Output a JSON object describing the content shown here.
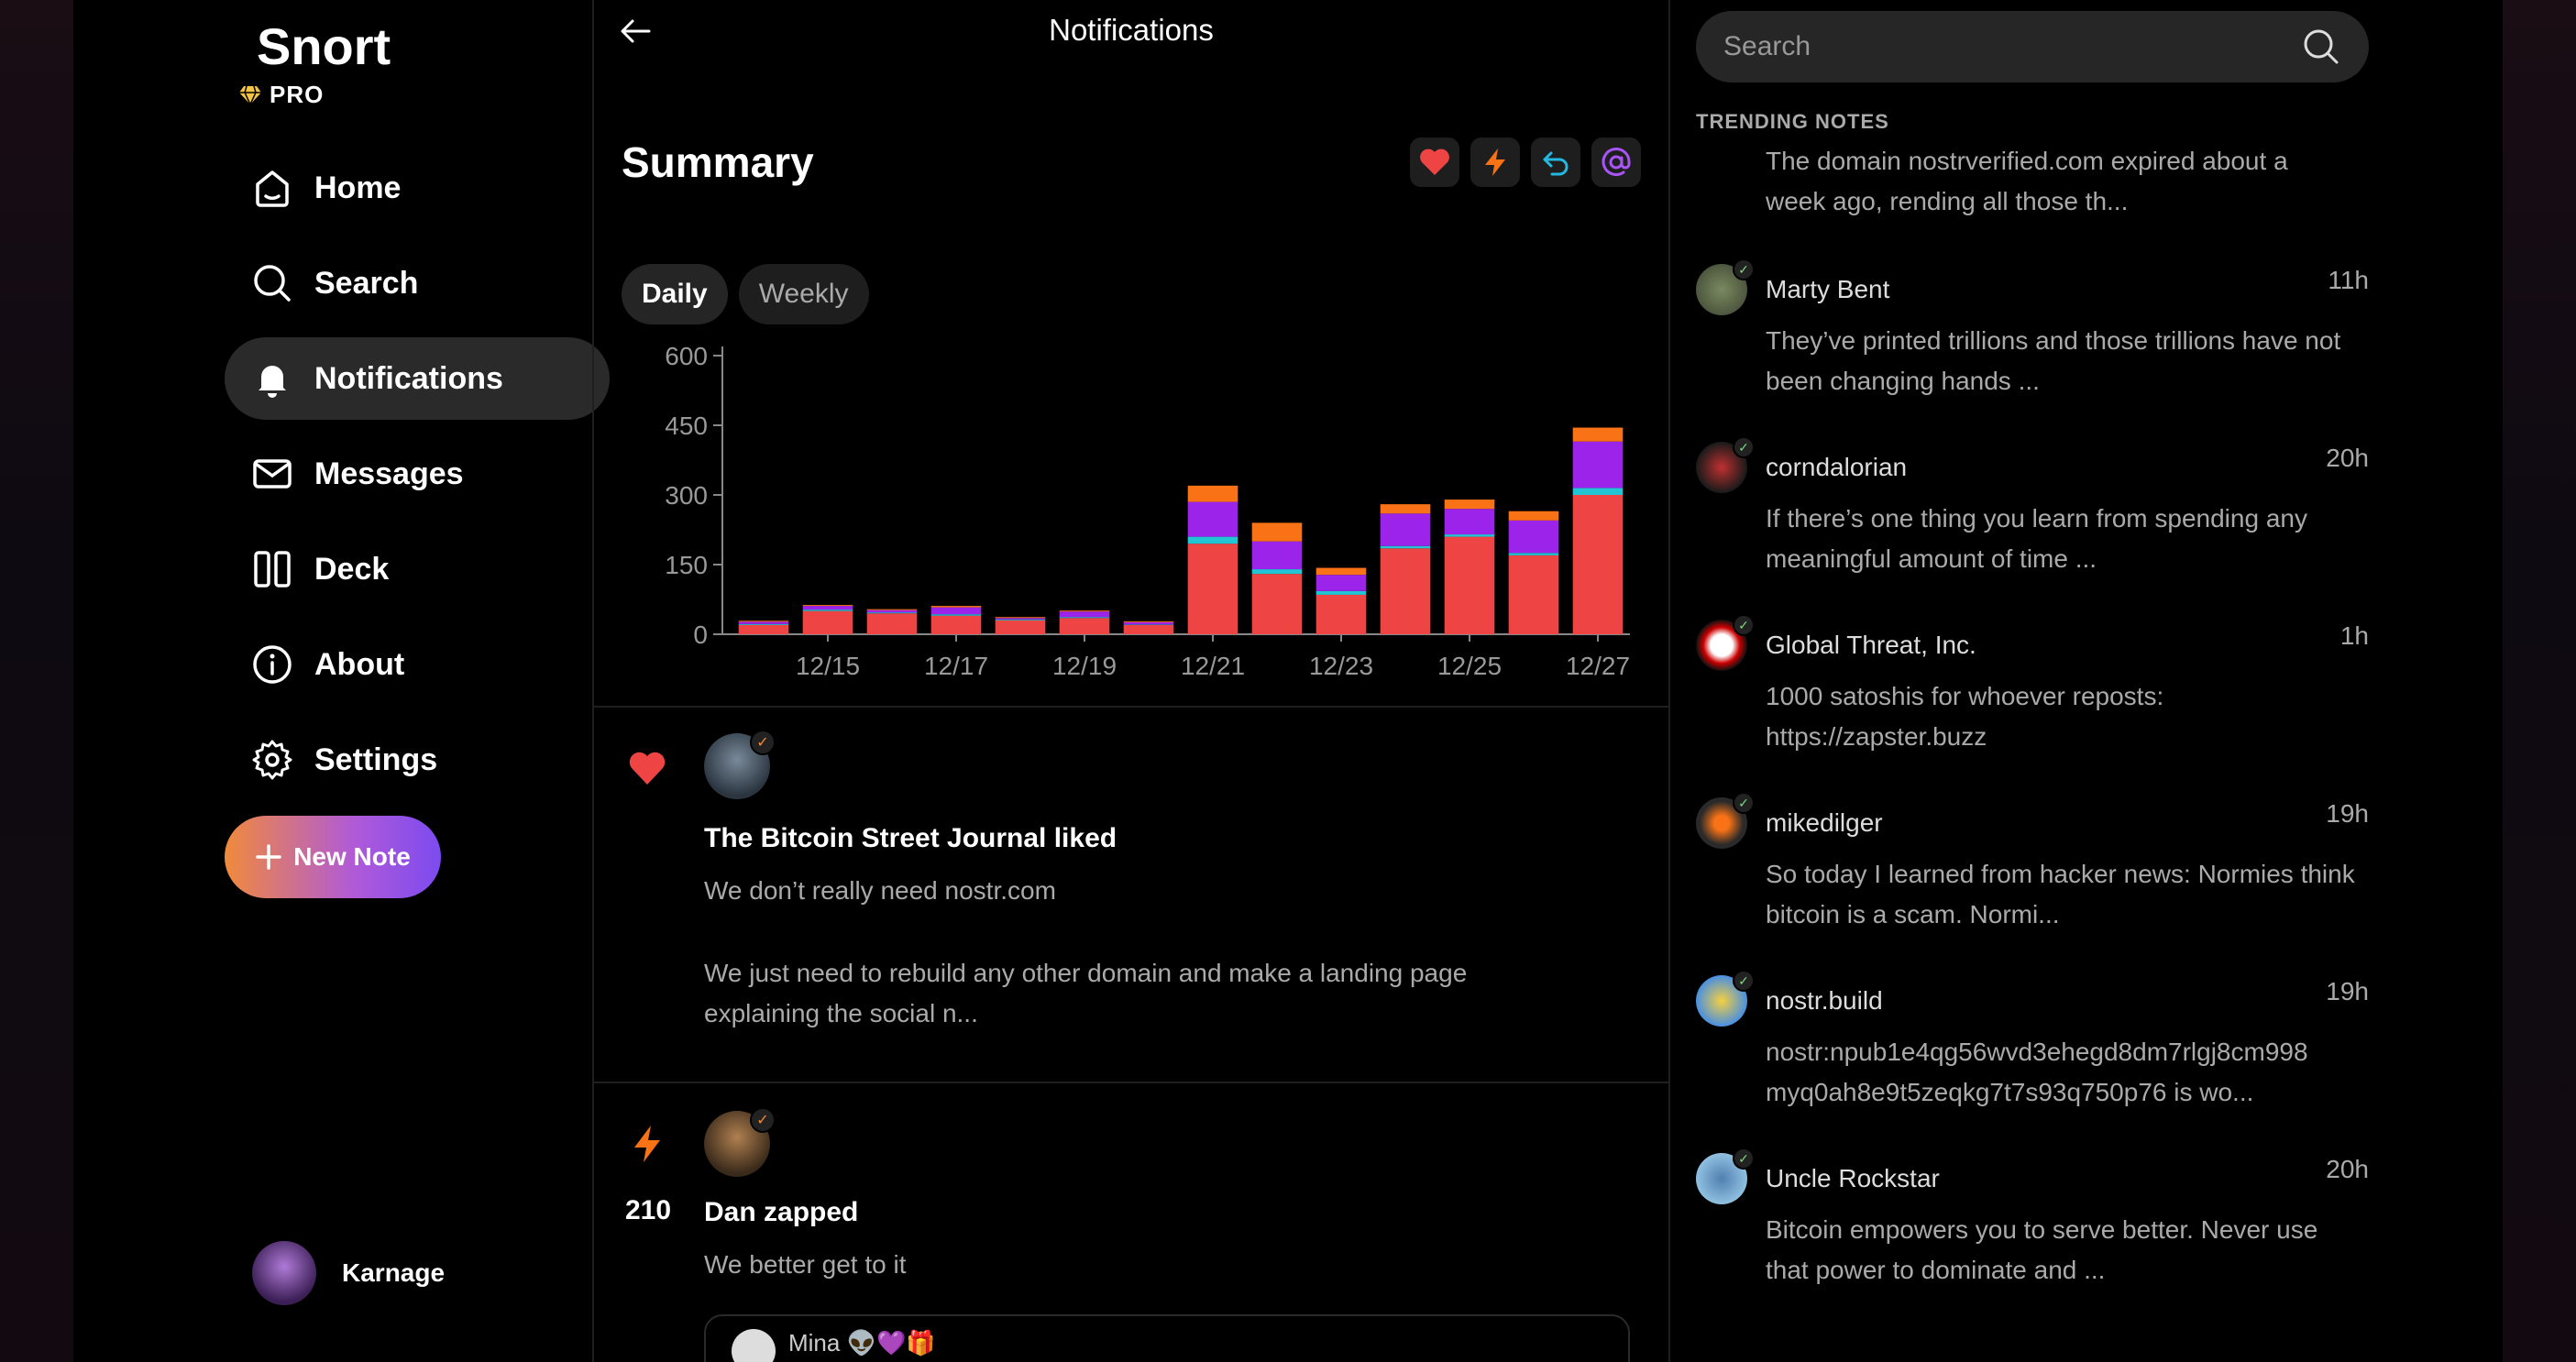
{
  "sidebar": {
    "logo": "Snort",
    "pro_label": "PRO",
    "nav": [
      {
        "label": "Home",
        "icon": "home-icon"
      },
      {
        "label": "Search",
        "icon": "search-icon"
      },
      {
        "label": "Notifications",
        "icon": "bell-icon",
        "active": true
      },
      {
        "label": "Messages",
        "icon": "mail-icon"
      },
      {
        "label": "Deck",
        "icon": "deck-icon"
      },
      {
        "label": "About",
        "icon": "info-icon"
      },
      {
        "label": "Settings",
        "icon": "gear-icon"
      }
    ],
    "new_note_label": "New Note",
    "profile_name": "Karnage"
  },
  "main": {
    "title": "Notifications",
    "summary_title": "Summary",
    "tabs": [
      {
        "label": "Daily",
        "active": true
      },
      {
        "label": "Weekly",
        "active": false
      }
    ],
    "filters": [
      "heart-icon",
      "zap-icon",
      "repost-icon",
      "mention-icon"
    ]
  },
  "chart_data": {
    "type": "bar",
    "stacked": true,
    "categories": [
      "12/14",
      "12/15",
      "12/16",
      "12/17",
      "12/18",
      "12/19",
      "12/20",
      "12/21",
      "12/22",
      "12/23",
      "12/24",
      "12/25",
      "12/26",
      "12/27"
    ],
    "x_tick_labels": [
      "12/15",
      "12/17",
      "12/19",
      "12/21",
      "12/23",
      "12/25",
      "12/27"
    ],
    "y_ticks": [
      0,
      150,
      300,
      450,
      600
    ],
    "ylim": [
      0,
      600
    ],
    "series": [
      {
        "color": "#ef4444",
        "values": [
          20,
          50,
          45,
          40,
          30,
          35,
          20,
          195,
          130,
          85,
          185,
          210,
          170,
          300
        ]
      },
      {
        "color": "#22c5d4",
        "values": [
          2,
          3,
          2,
          3,
          2,
          2,
          1,
          15,
          10,
          8,
          5,
          5,
          5,
          15
        ]
      },
      {
        "color": "#9b23ea",
        "values": [
          5,
          8,
          5,
          15,
          3,
          12,
          5,
          75,
          60,
          35,
          70,
          55,
          70,
          100
        ]
      },
      {
        "color": "#f97316",
        "values": [
          2,
          2,
          2,
          3,
          2,
          2,
          2,
          35,
          40,
          15,
          20,
          20,
          20,
          30
        ]
      }
    ]
  },
  "notifications": [
    {
      "kind": "like",
      "title": "The Bitcoin Street Journal liked",
      "text_1": "We don’t really need nostr.com",
      "text_2": "We just need to rebuild any other domain and make a landing page explaining the social n..."
    },
    {
      "kind": "zap",
      "count": "210",
      "title": "Dan zapped",
      "text_1": "We better get to it",
      "quote_author": "Mina 👽💜🎁"
    }
  ],
  "right": {
    "search_placeholder": "Search",
    "trending_heading": "TRENDING NOTES",
    "first_text": "The domain nostrverified.com expired about a week ago, rending all those th...",
    "items": [
      {
        "name": "Marty Bent",
        "time": "11h",
        "text": "They’ve printed trillions and those trillions have not been changing hands ..."
      },
      {
        "name": "corndalorian",
        "time": "20h",
        "text": "If there’s one thing you learn from spending any meaningful amount of time ..."
      },
      {
        "name": "Global Threat, Inc.",
        "time": "1h",
        "text": "1000 satoshis for whoever reposts: https://zapster.buzz"
      },
      {
        "name": "mikedilger",
        "time": "19h",
        "text": "So today I learned from hacker news: Normies think bitcoin is a scam. Normi..."
      },
      {
        "name": "nostr.build",
        "time": "19h",
        "text": "nostr:npub1e4qg56wvd3ehegd8dm7rlgj8cm998 myq0ah8e9t5zeqkg7t7s93q750p76 is wo..."
      },
      {
        "name": "Uncle Rockstar",
        "time": "20h",
        "text": "Bitcoin empowers you to serve better. Never use that power to dominate and ..."
      }
    ]
  }
}
